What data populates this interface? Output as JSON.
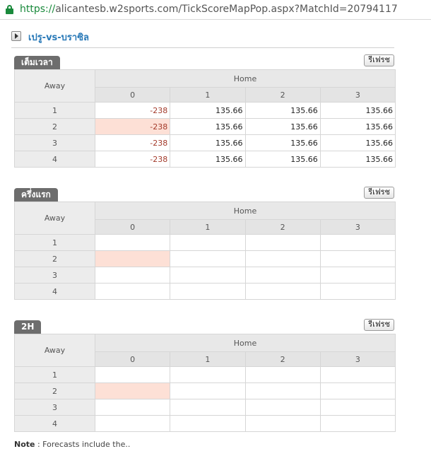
{
  "browser": {
    "url_scheme": "https://",
    "url_rest": "alicantesb.w2sports.com/TickScoreMapPop.aspx?MatchId=20794117"
  },
  "header": {
    "title": "เปรู-vs-บราซิล"
  },
  "labels": {
    "home": "Home",
    "away": "Away",
    "refresh": "รีเฟรช"
  },
  "columns": [
    "0",
    "1",
    "2",
    "3"
  ],
  "rows": [
    "1",
    "2",
    "3",
    "4"
  ],
  "sections": [
    {
      "tab": "เต็มเวลา",
      "cells": [
        [
          "-238",
          "135.66",
          "135.66",
          "135.66"
        ],
        [
          "-238",
          "135.66",
          "135.66",
          "135.66"
        ],
        [
          "-238",
          "135.66",
          "135.66",
          "135.66"
        ],
        [
          "-238",
          "135.66",
          "135.66",
          "135.66"
        ]
      ]
    },
    {
      "tab": "ครึ่งแรก",
      "cells": [
        [
          "",
          "",
          "",
          ""
        ],
        [
          "",
          "",
          "",
          ""
        ],
        [
          "",
          "",
          "",
          ""
        ],
        [
          "",
          "",
          "",
          ""
        ]
      ]
    },
    {
      "tab": "2H",
      "cells": [
        [
          "",
          "",
          "",
          ""
        ],
        [
          "",
          "",
          "",
          ""
        ],
        [
          "",
          "",
          "",
          ""
        ],
        [
          "",
          "",
          "",
          ""
        ]
      ]
    }
  ],
  "highlight": {
    "row": 1,
    "col": 0,
    "color": "#fde0d6"
  },
  "note": {
    "label": "Note",
    "text": " : Forecasts include the.."
  }
}
